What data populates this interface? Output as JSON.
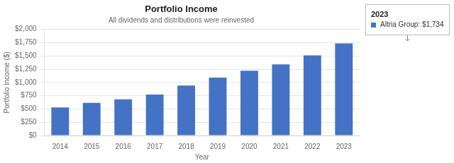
{
  "chart_data": {
    "type": "bar",
    "title": "Portfolio Income",
    "subtitle": "All dividends and distributions were reinvested",
    "xlabel": "Year",
    "ylabel": "Portfolio Income ($)",
    "categories": [
      "2014",
      "2015",
      "2016",
      "2017",
      "2018",
      "2019",
      "2020",
      "2021",
      "2022",
      "2023"
    ],
    "values": [
      530,
      615,
      680,
      770,
      940,
      1090,
      1220,
      1340,
      1510,
      1734
    ],
    "color": "#4472C4",
    "ylim": [
      0,
      2000
    ],
    "yticks": [
      {
        "value": 0,
        "label": "$0"
      },
      {
        "value": 250,
        "label": "$250"
      },
      {
        "value": 500,
        "label": "$500"
      },
      {
        "value": 750,
        "label": "$750"
      },
      {
        "value": 1000,
        "label": "$1,000"
      },
      {
        "value": 1250,
        "label": "$1,250"
      },
      {
        "value": 1500,
        "label": "$1,500"
      },
      {
        "value": 1750,
        "label": "$1,750"
      },
      {
        "value": 2000,
        "label": "$2,000"
      }
    ],
    "grid": "y",
    "annotations": [
      {
        "text": "2023"
      },
      {
        "text": "Altria Group: $1,734",
        "color": "#4472C4"
      }
    ]
  }
}
